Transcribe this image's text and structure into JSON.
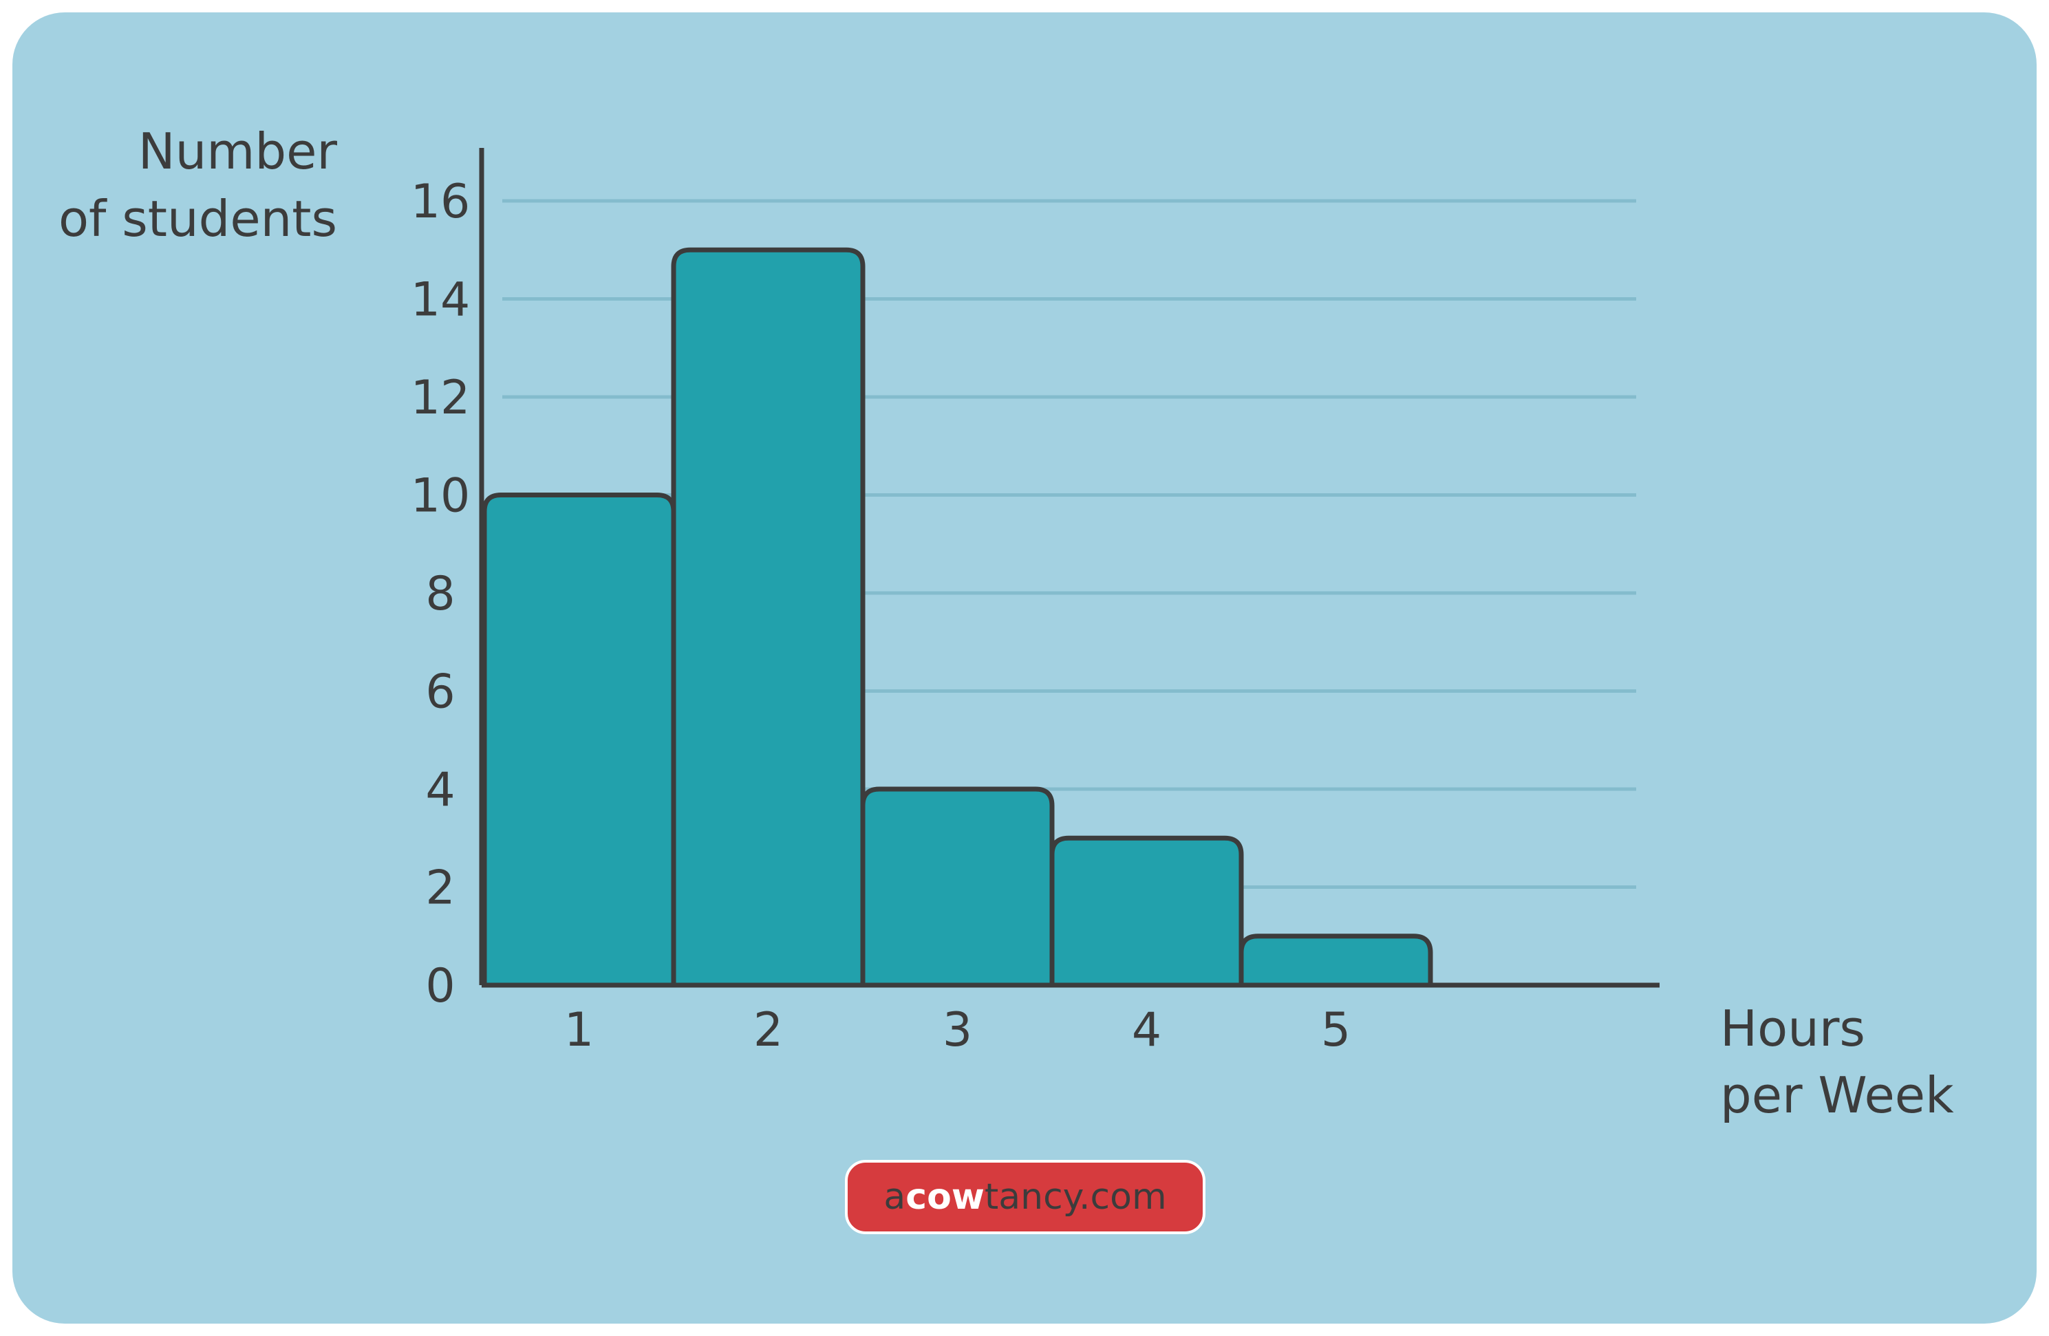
{
  "colors": {
    "background": "#a3d1e1",
    "bar_fill": "#22a1ac",
    "bar_stroke": "#3c3c3c",
    "grid": "#84bccd",
    "brand_bg": "#d63b3e"
  },
  "chart_data": {
    "type": "bar",
    "title": "",
    "ylabel_lines": [
      "Number",
      "of students"
    ],
    "xlabel_lines": [
      "Hours",
      "per Week"
    ],
    "categories": [
      "1",
      "2",
      "3",
      "4",
      "5"
    ],
    "values": [
      10,
      15,
      4,
      3,
      1
    ],
    "ylim": [
      0,
      17
    ],
    "yticks": [
      0,
      2,
      4,
      6,
      8,
      10,
      12,
      14,
      16
    ],
    "grid": true,
    "bar_gap": 0
  },
  "brand": {
    "prefix": "a",
    "middle": "cow",
    "suffix": "tancy.com"
  }
}
